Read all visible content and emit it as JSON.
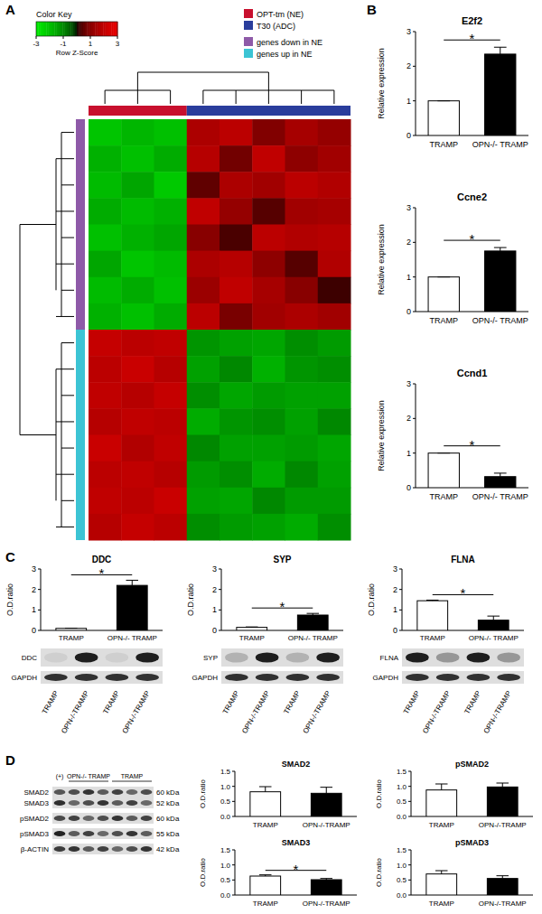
{
  "chart_data": [
    {
      "type": "heatmap",
      "panel": "A",
      "cells": [
        [
          -2.1,
          -1.8,
          -2.0,
          1.6,
          1.9,
          0.9,
          1.5,
          1.2
        ],
        [
          -1.7,
          -2.0,
          -1.6,
          1.8,
          0.7,
          2.0,
          1.1,
          1.4
        ],
        [
          -1.9,
          -1.5,
          -2.2,
          0.5,
          1.6,
          1.4,
          1.9,
          1.7
        ],
        [
          -1.6,
          -1.9,
          -1.7,
          2.0,
          1.2,
          0.4,
          1.4,
          1.5
        ],
        [
          -2.0,
          -1.7,
          -1.5,
          1.0,
          0.3,
          1.9,
          1.7,
          1.8
        ],
        [
          -1.5,
          -2.1,
          -1.9,
          1.6,
          1.8,
          1.1,
          0.4,
          1.7
        ],
        [
          -1.9,
          -1.6,
          -2.0,
          1.3,
          2.0,
          1.5,
          1.0,
          0.2
        ],
        [
          -1.7,
          -2.0,
          -1.6,
          1.9,
          0.8,
          1.4,
          1.6,
          1.4
        ],
        [
          2.1,
          1.9,
          2.0,
          -1.2,
          -1.4,
          -1.5,
          -1.1,
          -1.3
        ],
        [
          1.9,
          2.2,
          1.8,
          -1.4,
          -1.0,
          -1.7,
          -1.2,
          -1.1
        ],
        [
          2.0,
          1.8,
          2.1,
          -1.1,
          -1.5,
          -1.3,
          -1.4,
          -1.4
        ],
        [
          1.8,
          2.0,
          1.9,
          -1.6,
          -1.2,
          -1.1,
          -1.4,
          -1.0
        ],
        [
          2.2,
          1.7,
          2.0,
          -1.0,
          -1.4,
          -1.4,
          -1.3,
          -1.5
        ],
        [
          1.9,
          2.0,
          1.8,
          -1.3,
          -1.1,
          -1.6,
          -1.0,
          -1.4
        ],
        [
          2.0,
          1.9,
          2.2,
          -1.4,
          -1.5,
          -1.0,
          -1.3,
          -1.3
        ],
        [
          1.8,
          2.1,
          1.9,
          -1.1,
          -1.3,
          -1.4,
          -1.6,
          -1.1
        ]
      ],
      "groups": [
        {
          "name": "OPT-tm (NE)",
          "color": "#c8102e",
          "columns": 3
        },
        {
          "name": "T30 (ADC)",
          "color": "#2a3d9c",
          "columns": 5
        }
      ],
      "row_groups": [
        {
          "name": "genes down in NE",
          "color": "#8e5aa8",
          "rows": 8
        },
        {
          "name": "genes up in NE",
          "color": "#3cc4d4",
          "rows": 8
        }
      ],
      "colorbar": {
        "title": "Color Key",
        "label": "Row Z-Score",
        "range": [
          -3,
          3
        ],
        "ticks": [
          -3,
          -1,
          1,
          3
        ]
      }
    },
    {
      "type": "bar",
      "panel": "B",
      "title": "E2f2",
      "categories": [
        "TRAMP",
        "OPN-/- TRAMP"
      ],
      "values": [
        1,
        2.35
      ],
      "errors": [
        0,
        0.2
      ],
      "colors": [
        "#ffffff",
        "#000000"
      ],
      "ylabel": "Relative expression",
      "ylim": [
        0,
        3
      ],
      "yticks": [
        0,
        1,
        2,
        3
      ],
      "annotation": "*"
    },
    {
      "type": "bar",
      "title": "Ccne2",
      "categories": [
        "TRAMP",
        "OPN-/- TRAMP"
      ],
      "values": [
        1,
        1.75
      ],
      "errors": [
        0,
        0.1
      ],
      "colors": [
        "#ffffff",
        "#000000"
      ],
      "ylabel": "Relative expression",
      "ylim": [
        0,
        3
      ],
      "yticks": [
        0,
        1,
        2,
        3
      ],
      "annotation": "*"
    },
    {
      "type": "bar",
      "title": "Ccnd1",
      "categories": [
        "TRAMP",
        "OPN-/- TRAMP"
      ],
      "values": [
        1,
        0.32
      ],
      "errors": [
        0,
        0.1
      ],
      "colors": [
        "#ffffff",
        "#000000"
      ],
      "ylabel": "Relative expression",
      "ylim": [
        0,
        3
      ],
      "yticks": [
        0,
        1,
        2,
        3
      ],
      "annotation": "*"
    },
    {
      "type": "bar",
      "panel": "C",
      "title": "DDC",
      "categories": [
        "TRAMP",
        "OPN-/- TRAMP"
      ],
      "values": [
        0.1,
        2.2
      ],
      "errors": [
        0.01,
        0.25
      ],
      "colors": [
        "#ffffff",
        "#000000"
      ],
      "ylabel": "O.D.ratio",
      "ylim": [
        0,
        3
      ],
      "yticks": [
        0,
        1,
        2,
        3
      ],
      "annotation": "*"
    },
    {
      "type": "bar",
      "title": "SYP",
      "categories": [
        "TRAMP",
        "OPN-/- TRAMP"
      ],
      "values": [
        0.15,
        0.75
      ],
      "errors": [
        0.02,
        0.08
      ],
      "colors": [
        "#ffffff",
        "#000000"
      ],
      "ylabel": "O.D.ratio",
      "ylim": [
        0,
        3
      ],
      "yticks": [
        0,
        1,
        2,
        3
      ],
      "annotation": "*"
    },
    {
      "type": "bar",
      "title": "FLNA",
      "categories": [
        "TRAMP",
        "OPN-/- TRAMP"
      ],
      "values": [
        1.45,
        0.5
      ],
      "errors": [
        0.03,
        0.2
      ],
      "colors": [
        "#ffffff",
        "#000000"
      ],
      "ylabel": "O.D.ratio",
      "ylim": [
        0,
        3
      ],
      "yticks": [
        0,
        1,
        2,
        3
      ],
      "annotation": "*"
    },
    {
      "type": "bar",
      "panel": "D",
      "title": "SMAD2",
      "categories": [
        "TRAMP",
        "OPN-/-TRAMP"
      ],
      "values": [
        0.82,
        0.77
      ],
      "errors": [
        0.17,
        0.2
      ],
      "colors": [
        "#ffffff",
        "#000000"
      ],
      "ylabel": "O.D.ratio",
      "ylim": [
        0,
        1.5
      ],
      "yticks": [
        {
          "value": 0,
          "label": "0.0"
        },
        {
          "value": 0.5,
          "label": "0.5"
        },
        {
          "value": 1,
          "label": "1.0"
        },
        {
          "value": 1.5,
          "label": "1.5"
        }
      ]
    },
    {
      "type": "bar",
      "title": "pSMAD2",
      "categories": [
        "TRAMP",
        "OPN-/-TRAMP"
      ],
      "values": [
        0.88,
        0.98
      ],
      "errors": [
        0.2,
        0.13
      ],
      "colors": [
        "#ffffff",
        "#000000"
      ],
      "ylabel": "O.D.ratio",
      "ylim": [
        0,
        1.5
      ],
      "yticks": [
        {
          "value": 0,
          "label": "0.0"
        },
        {
          "value": 0.5,
          "label": "0.5"
        },
        {
          "value": 1,
          "label": "1.0"
        },
        {
          "value": 1.5,
          "label": "1.5"
        }
      ]
    },
    {
      "type": "bar",
      "title": "SMAD3",
      "categories": [
        "TRAMP",
        "OPN-/-TRAMP"
      ],
      "values": [
        0.63,
        0.51
      ],
      "errors": [
        0.04,
        0.04
      ],
      "colors": [
        "#ffffff",
        "#000000"
      ],
      "ylabel": "O.D.ratio",
      "ylim": [
        0,
        1.5
      ],
      "yticks": [
        {
          "value": 0,
          "label": "0.0"
        },
        {
          "value": 0.5,
          "label": "0.5"
        },
        {
          "value": 1,
          "label": "1.0"
        },
        {
          "value": 1.5,
          "label": "1.5"
        }
      ],
      "annotation": "*"
    },
    {
      "type": "bar",
      "title": "pSMAD3",
      "categories": [
        "TRAMP",
        "OPN-/-TRAMP"
      ],
      "values": [
        0.7,
        0.55
      ],
      "errors": [
        0.11,
        0.09
      ],
      "colors": [
        "#ffffff",
        "#000000"
      ],
      "ylabel": "O.D.ratio",
      "ylim": [
        0,
        1.5
      ],
      "yticks": [
        {
          "value": 0,
          "label": "0.0"
        },
        {
          "value": 0.5,
          "label": "0.5"
        },
        {
          "value": 1,
          "label": "1.0"
        },
        {
          "value": 1.5,
          "label": "1.5"
        }
      ]
    }
  ],
  "blots": [
    {
      "rows": [
        "DDC",
        "GAPDH"
      ],
      "lanes": [
        "TRAMP",
        "OPN-/-TRAMP",
        "TRAMP",
        "OPN-/-TRAMP"
      ]
    },
    {
      "rows": [
        "SYP",
        "GAPDH"
      ],
      "lanes": [
        "TRAMP",
        "OPN-/-TRAMP",
        "TRAMP",
        "OPN-/-TRAMP"
      ]
    },
    {
      "rows": [
        "FLNA",
        "GAPDH"
      ],
      "lanes": [
        "TRAMP",
        "OPN-/-TRAMP",
        "TRAMP",
        "OPN-/-TRAMP"
      ]
    },
    {
      "lane_groups": [
        {
          "label": "(+)",
          "lanes": 1
        },
        {
          "label": "OPN-/- TRAMP",
          "lanes": 3
        },
        {
          "label": "TRAMP",
          "lanes": 3
        }
      ],
      "rows": [
        {
          "label": "SMAD2",
          "kda": "60 kDa"
        },
        {
          "label": "SMAD3",
          "kda": "52 kDa"
        },
        {
          "label": "pSMAD2",
          "kda": "60 kDa"
        },
        {
          "label": "pSMAD3",
          "kda": "55 kDa"
        },
        {
          "label": "β-ACTIN",
          "kda": "42 kDa"
        }
      ]
    }
  ]
}
